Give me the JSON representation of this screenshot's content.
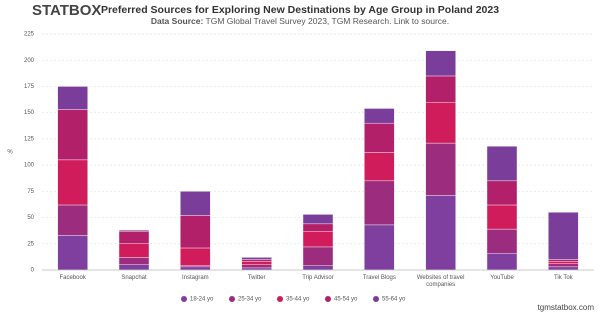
{
  "logo": "STATBOX",
  "footer": "tgmstatbox.com",
  "chart_data": {
    "type": "stacked_bar",
    "title": "Preferred Sources for Exploring New Destinations by Age Group in Poland 2023",
    "subtitle_label": "Data Source:",
    "subtitle": "TGM Global Travel Survey 2023, TGM Research. Link to source.",
    "y_label": "%",
    "categories": [
      "Facebook",
      "Snapchat",
      "Instagram",
      "Twitter",
      "Trip Advisor",
      "Travel Blogs",
      "Websites of travel companies",
      "YouTube",
      "Tik Tok"
    ],
    "series": [
      {
        "name": "18-24 yo",
        "color": "#7e3f9e",
        "values": [
          33,
          5,
          3,
          2,
          4,
          43,
          71,
          16,
          3
        ]
      },
      {
        "name": "25-34 yo",
        "color": "#9b2c7e",
        "values": [
          29,
          7,
          1,
          3,
          18,
          42,
          50,
          23,
          3
        ]
      },
      {
        "name": "35-44 yo",
        "color": "#d01c5b",
        "values": [
          43,
          13,
          17,
          3,
          15,
          27,
          39,
          23,
          2
        ]
      },
      {
        "name": "45-54 yo",
        "color": "#b3206a",
        "values": [
          48,
          12,
          31,
          2,
          7,
          28,
          25,
          23,
          2
        ]
      },
      {
        "name": "55-64 yo",
        "color": "#7b3d9a",
        "values": [
          22,
          1,
          23,
          2,
          9,
          14,
          24,
          33,
          45
        ]
      }
    ],
    "ylim": [
      0,
      225
    ],
    "yticks": [
      0,
      25,
      50,
      75,
      100,
      125,
      150,
      175,
      200,
      225
    ],
    "grid": true
  }
}
